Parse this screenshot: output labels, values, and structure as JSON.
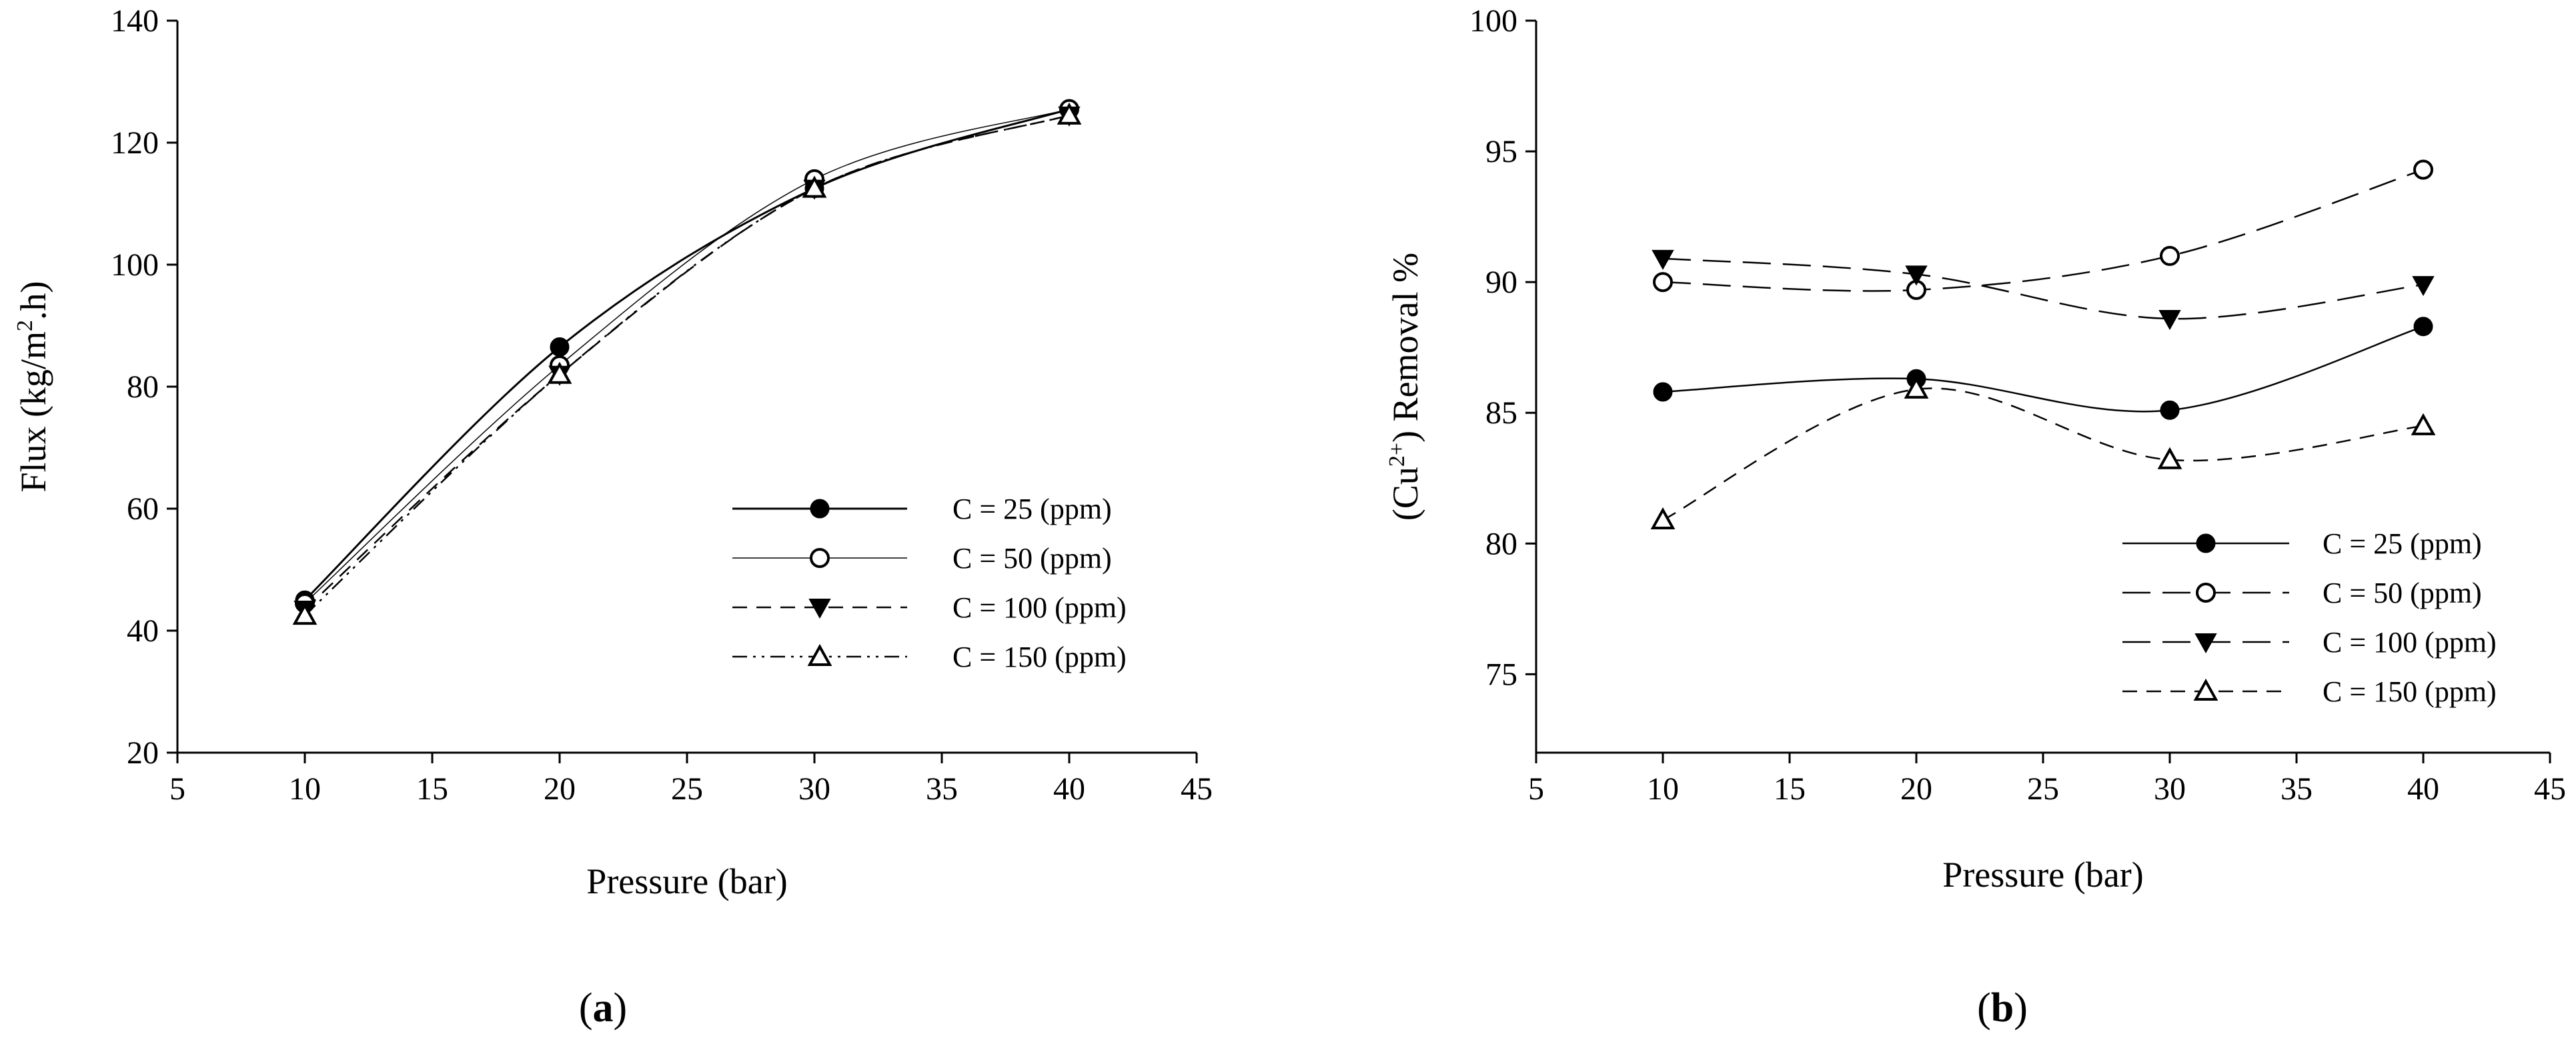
{
  "chart_data": [
    {
      "type": "line",
      "panel_label": "a",
      "title": "",
      "xlabel": "Pressure (bar)",
      "ylabel_parts": [
        "Flux (kg/m",
        "2",
        ".h)"
      ],
      "xlim": [
        5,
        45
      ],
      "ylim": [
        20,
        140
      ],
      "xticks": [
        5,
        10,
        15,
        20,
        25,
        30,
        35,
        40,
        45
      ],
      "yticks": [
        20,
        40,
        60,
        80,
        100,
        120,
        140
      ],
      "grid": false,
      "legend_position": "lower-right",
      "x": [
        10,
        20,
        30,
        40
      ],
      "series": [
        {
          "name": "C = 25 (ppm)",
          "values": [
            45,
            86.5,
            112.5,
            125.5
          ],
          "marker": "filled-circle",
          "dash": "solid",
          "width": 3
        },
        {
          "name": "C = 50 (ppm)",
          "values": [
            44.5,
            83.5,
            114,
            125.5
          ],
          "marker": "open-circle",
          "dash": "solid",
          "width": 1.5
        },
        {
          "name": "C = 100 (ppm)",
          "values": [
            43.5,
            82,
            112.5,
            124.5
          ],
          "marker": "filled-triangle-down",
          "dash": "dash",
          "width": 2.5
        },
        {
          "name": "C = 150 (ppm)",
          "values": [
            42.5,
            82,
            112.5,
            124.5
          ],
          "marker": "open-triangle-up",
          "dash": "dashdotdot",
          "width": 2.5
        }
      ]
    },
    {
      "type": "line",
      "panel_label": "b",
      "title": "",
      "xlabel": "Pressure (bar)",
      "ylabel_parts": [
        "(Cu",
        "2+",
        ") Removal %"
      ],
      "xlim": [
        5,
        45
      ],
      "ylim": [
        72,
        100
      ],
      "xticks": [
        5,
        10,
        15,
        20,
        25,
        30,
        35,
        40,
        45
      ],
      "yticks": [
        75,
        80,
        85,
        90,
        95,
        100
      ],
      "grid": false,
      "legend_position": "lower-right",
      "x": [
        10,
        20,
        30,
        40
      ],
      "series": [
        {
          "name": "C = 25 (ppm)",
          "values": [
            85.8,
            86.3,
            85.1,
            88.3
          ],
          "marker": "filled-circle",
          "dash": "solid",
          "width": 2.5
        },
        {
          "name": "C = 50 (ppm)",
          "values": [
            90.0,
            89.7,
            91.0,
            94.3
          ],
          "marker": "open-circle",
          "dash": "longdash",
          "width": 2.5
        },
        {
          "name": "C = 100 (ppm)",
          "values": [
            90.9,
            90.3,
            88.6,
            89.9
          ],
          "marker": "filled-triangle-down",
          "dash": "longdash",
          "width": 2.5
        },
        {
          "name": "C = 150 (ppm)",
          "values": [
            80.9,
            85.9,
            83.2,
            84.5
          ],
          "marker": "open-triangle-up",
          "dash": "dash",
          "width": 2.5
        }
      ]
    }
  ]
}
